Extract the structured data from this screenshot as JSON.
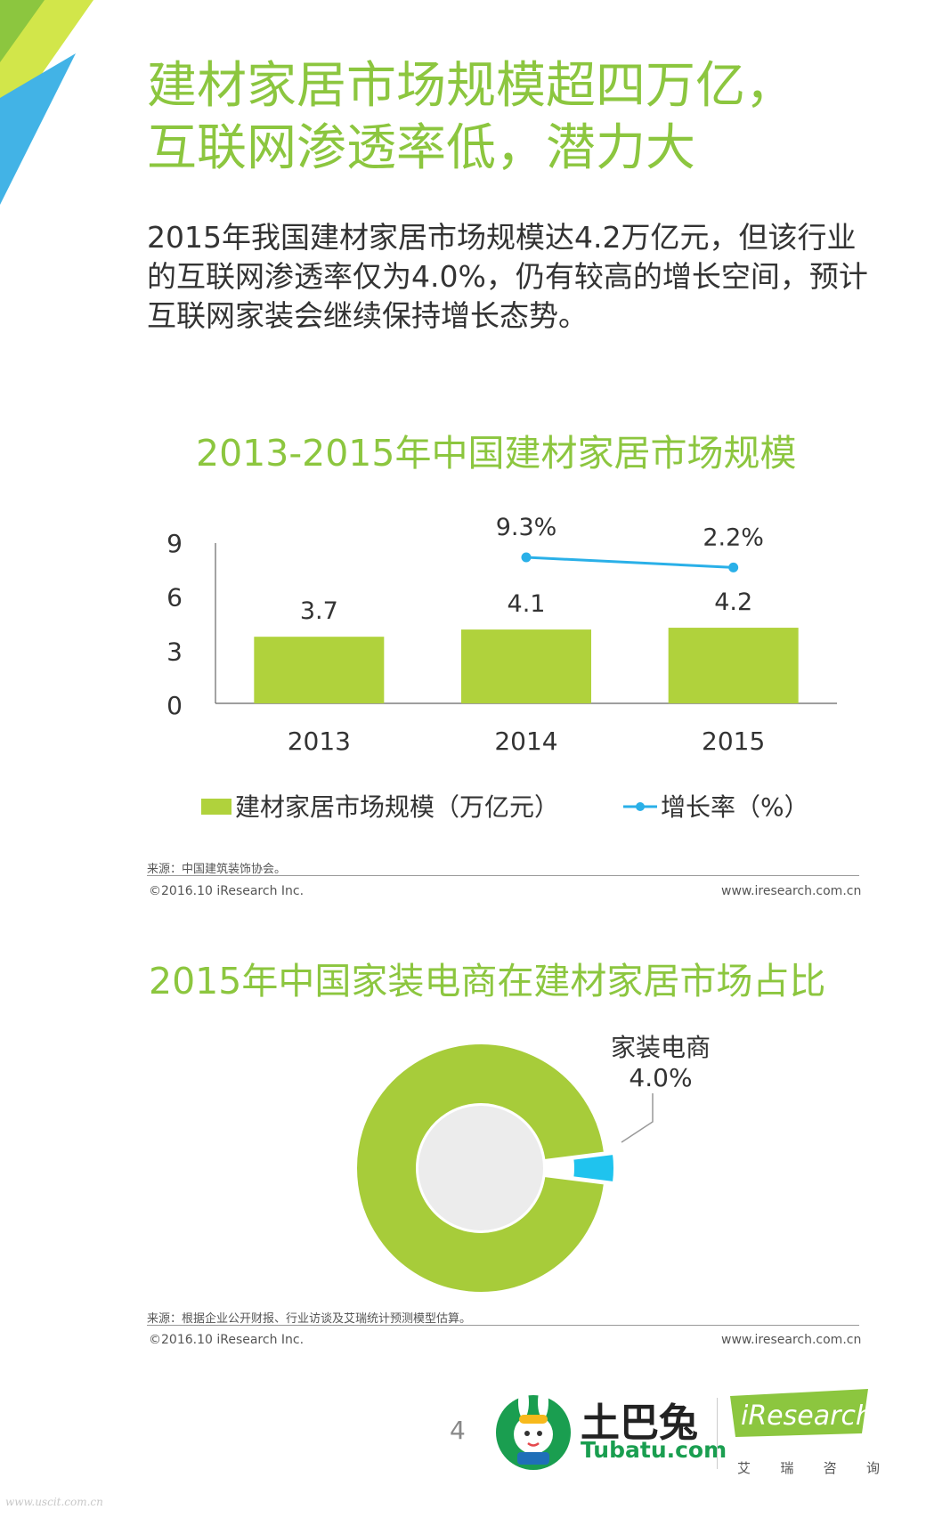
{
  "header": {
    "title_line1": "建材家居市场规模超四万亿，",
    "title_line2": "互联网渗透率低，潜力大",
    "description": "2015年我国建材家居市场规模达4.2万亿元，但该行业的互联网渗透率仅为4.0%，仍有较高的增长空间，预计互联网家装会继续保持增长态势。"
  },
  "chart_data": [
    {
      "type": "bar",
      "title": "2013-2015年中国建材家居市场规模",
      "categories": [
        "2013",
        "2014",
        "2015"
      ],
      "y_ticks": [
        "0",
        "3",
        "6",
        "9"
      ],
      "ylim": [
        0,
        9
      ],
      "series": [
        {
          "name": "建材家居市场规模（万亿元）",
          "type": "bar",
          "values": [
            3.7,
            4.1,
            4.2
          ],
          "labels": [
            "3.7",
            "4.1",
            "4.2"
          ],
          "color": "#b0d23c"
        },
        {
          "name": "增长率（%）",
          "type": "line",
          "values": [
            null,
            9.3,
            2.2
          ],
          "labels": [
            "",
            "9.3%",
            "2.2%"
          ],
          "color": "#2ab0e8"
        }
      ],
      "legend_position": "bottom",
      "source": "来源：中国建筑装饰协会。",
      "copyright": "©2016.10 iResearch Inc.",
      "website": "www.iresearch.com.cn"
    },
    {
      "type": "pie",
      "title": "2015年中国家装电商在建材家居市场占比",
      "slices": [
        {
          "name": "家装电商",
          "value": 4.0,
          "label": "4.0%",
          "color": "#1fc3ee"
        },
        {
          "name": "",
          "value": 96.0,
          "label": "",
          "color": "#a7cc3a"
        }
      ],
      "callout_name": "家装电商",
      "callout_value": "4.0%",
      "source": "来源：根据企业公开财报、行业访谈及艾瑞统计预测模型估算。",
      "copyright": "©2016.10 iResearch Inc.",
      "website": "www.iresearch.com.cn"
    }
  ],
  "footer": {
    "page_number": "4",
    "brand_cn": "土巴兔",
    "brand_en": "Tubatu.com",
    "ir_name": "iResearch",
    "ir_chars": [
      "艾",
      "瑞",
      "咨",
      "询"
    ],
    "watermark": "www.uscit.com.cn"
  },
  "colors": {
    "accent_green": "#8cc63f",
    "bar_green": "#b0d23c",
    "line_blue": "#2ab0e8"
  }
}
